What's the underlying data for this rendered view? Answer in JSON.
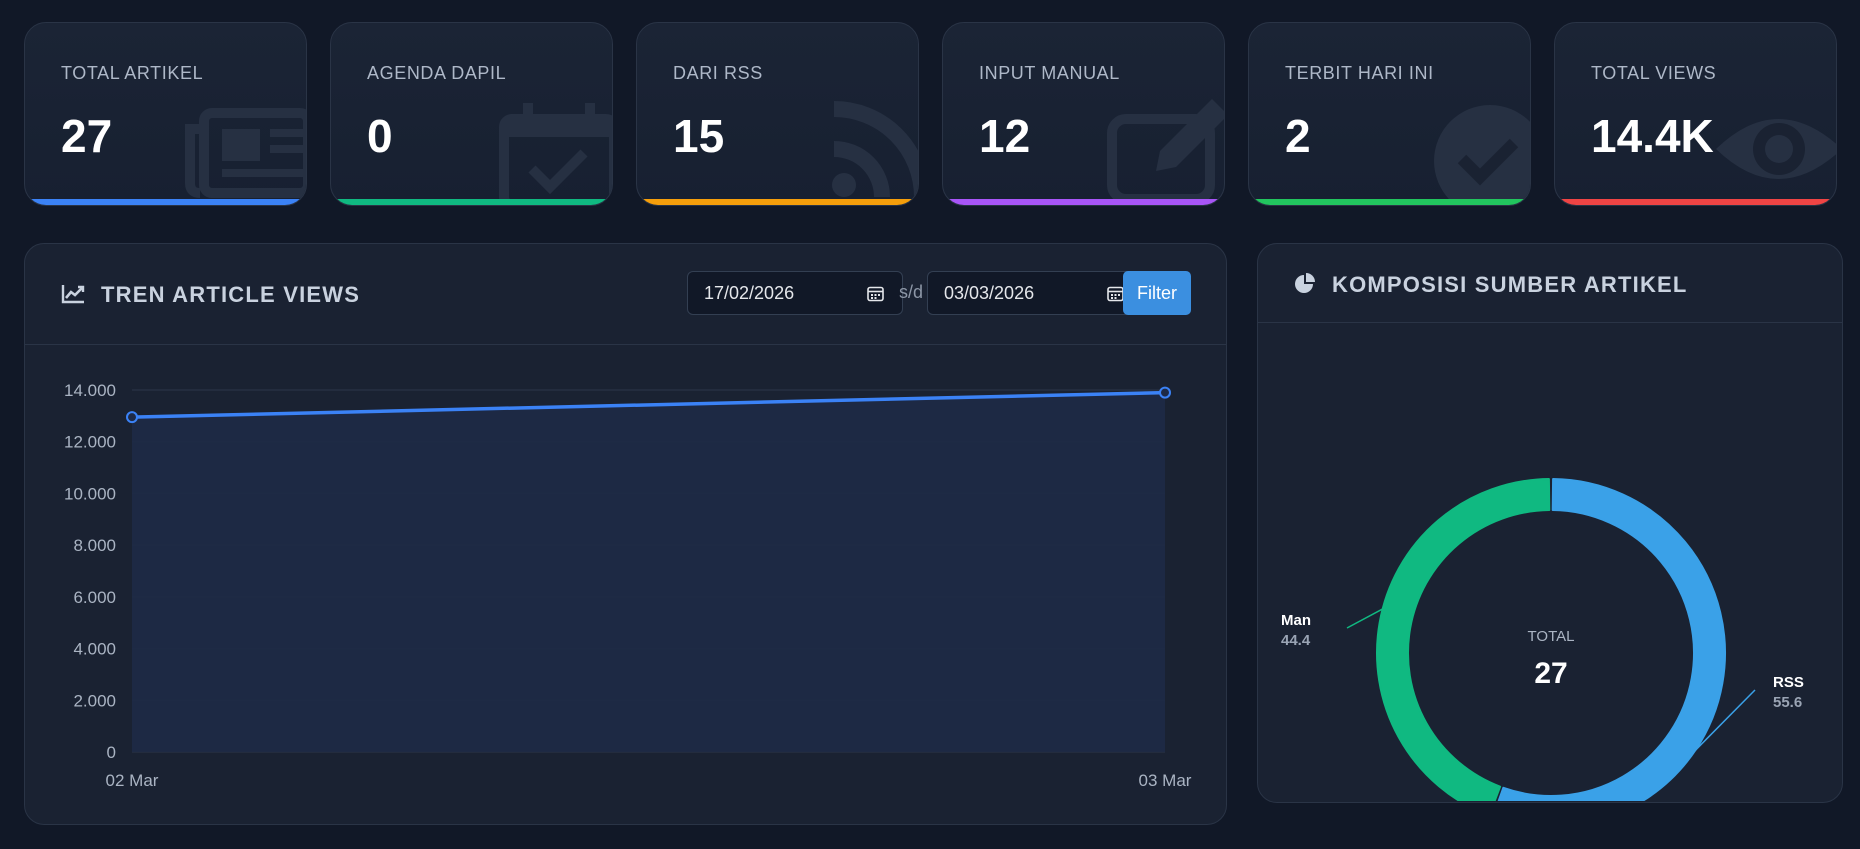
{
  "stats": [
    {
      "label": "TOTAL ARTIKEL",
      "value": "27",
      "icon": "newspaper-icon",
      "color": "#3b82f6"
    },
    {
      "label": "AGENDA DAPIL",
      "value": "0",
      "icon": "calendar-check-icon",
      "color": "#10b981"
    },
    {
      "label": "DARI RSS",
      "value": "15",
      "icon": "rss-icon",
      "color": "#f59e0b"
    },
    {
      "label": "INPUT MANUAL",
      "value": "12",
      "icon": "edit-icon",
      "color": "#a855f7"
    },
    {
      "label": "TERBIT HARI INI",
      "value": "2",
      "icon": "check-circle-icon",
      "color": "#22c55e"
    },
    {
      "label": "TOTAL VIEWS",
      "value": "14.4K",
      "icon": "eye-icon",
      "color": "#ef4444"
    }
  ],
  "trend": {
    "title": "TREN ARTICLE VIEWS",
    "icon": "line-chart-icon",
    "date_from": "17/02/2026",
    "separator": "s/d",
    "date_to": "03/03/2026",
    "filter_label": "Filter"
  },
  "composition": {
    "title": "KOMPOSISI SUMBER ARTIKEL",
    "icon": "pie-chart-icon",
    "center_label": "TOTAL",
    "center_value": "27"
  },
  "chart_data": [
    {
      "type": "area",
      "categories": [
        "02 Mar",
        "03 Mar"
      ],
      "series": [
        {
          "values": [
            12950,
            13900
          ],
          "color": "#3b82f6"
        }
      ],
      "yticks": [
        "0",
        "2.000",
        "4.000",
        "6.000",
        "8.000",
        "10.000",
        "12.000",
        "14.000"
      ],
      "ylim": [
        0,
        14000
      ],
      "grid": true
    },
    {
      "type": "pie",
      "donut": true,
      "slices": [
        {
          "label": "RSS",
          "value": "55.6",
          "color": "#3aa1e8"
        },
        {
          "label": "Man",
          "value": "44.4",
          "color": "#10b981"
        }
      ]
    }
  ]
}
